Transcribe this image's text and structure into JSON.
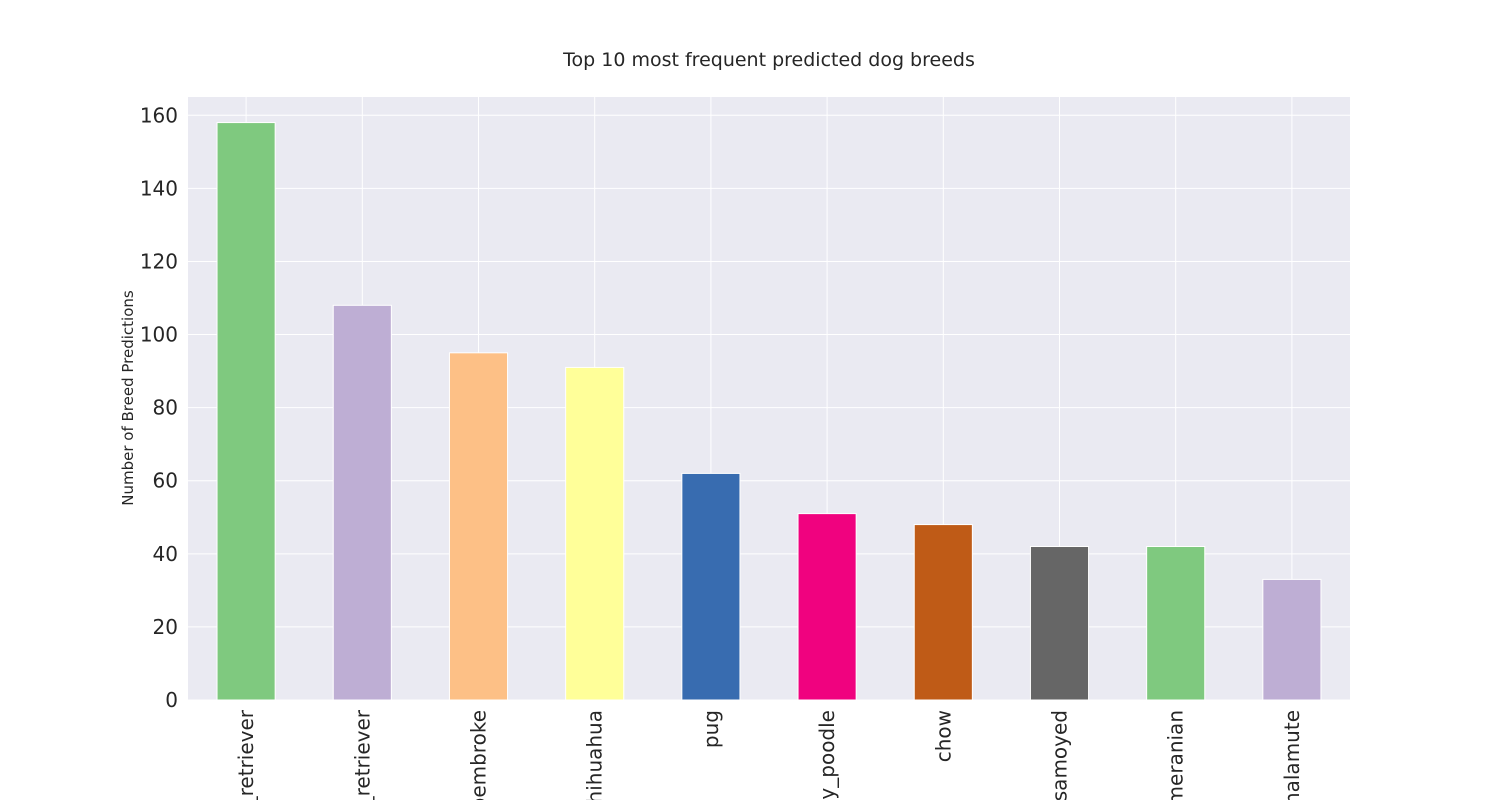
{
  "chart_data": {
    "type": "bar",
    "title": "Top 10 most frequent predicted dog breeds",
    "xlabel": "",
    "ylabel": "Number of Breed Predictions",
    "categories": [
      "_retriever",
      "_retriever",
      "pembroke",
      "chihuahua",
      "pug",
      "py_poodle",
      "chow",
      "samoyed",
      "meranian",
      "malamute"
    ],
    "values": [
      158,
      108,
      95,
      91,
      62,
      51,
      48,
      42,
      42,
      33
    ],
    "colors": [
      "#7fc97f",
      "#beaed4",
      "#fdc086",
      "#ffff99",
      "#386cb0",
      "#f0027f",
      "#bf5b17",
      "#666666",
      "#7fc97f",
      "#beaed4"
    ],
    "ylim": [
      0,
      165
    ],
    "yticks": [
      0,
      20,
      40,
      60,
      80,
      100,
      120,
      140,
      160
    ],
    "grid": true,
    "background": "#eaeaf2",
    "gridcolor": "#ffffff"
  }
}
